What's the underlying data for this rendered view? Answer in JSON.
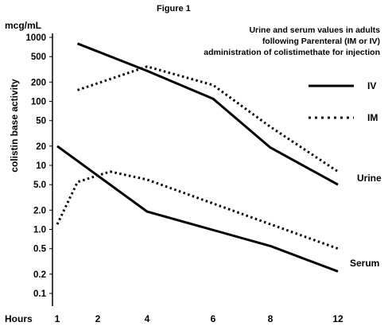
{
  "chart_data": {
    "type": "line",
    "title": "Figure 1",
    "subtitle_lines": [
      "Urine and serum values in adults",
      "following Parenteral (IM or IV)",
      "administration of colistimethate for injection"
    ],
    "unit_label": "mcg/mL",
    "ylabel": "colistin base activity",
    "xlabel": "Hours",
    "x_ticks": [
      "1",
      "2",
      "4",
      "6",
      "8",
      "12"
    ],
    "y_ticks": [
      "1000",
      "500",
      "200",
      "100",
      "50",
      "20",
      "10",
      "5.0",
      "2.0",
      "1.0",
      "0.5",
      "0.2",
      "0.1"
    ],
    "y_scale": "log",
    "ylim": [
      0.1,
      1000
    ],
    "legend": [
      {
        "name": "IV",
        "style": "solid"
      },
      {
        "name": "IM",
        "style": "dotted"
      }
    ],
    "legend_placement": "right",
    "series": [
      {
        "group": "Urine",
        "route": "IV",
        "style": "solid",
        "points": [
          {
            "x": "1.5",
            "y": 800
          },
          {
            "x": "4",
            "y": 300
          },
          {
            "x": "6",
            "y": 110
          },
          {
            "x": "8",
            "y": 19
          },
          {
            "x": "12",
            "y": 5
          }
        ]
      },
      {
        "group": "Urine",
        "route": "IM",
        "style": "dotted",
        "points": [
          {
            "x": "1.5",
            "y": 150
          },
          {
            "x": "4",
            "y": 350
          },
          {
            "x": "6",
            "y": 180
          },
          {
            "x": "8",
            "y": 40
          },
          {
            "x": "12",
            "y": 8
          }
        ]
      },
      {
        "group": "Serum",
        "route": "IV",
        "style": "solid",
        "points": [
          {
            "x": "1",
            "y": 20
          },
          {
            "x": "4",
            "y": 1.9
          },
          {
            "x": "8",
            "y": 0.55
          },
          {
            "x": "12",
            "y": 0.22
          }
        ]
      },
      {
        "group": "Serum",
        "route": "IM",
        "style": "dotted",
        "points": [
          {
            "x": "1",
            "y": 1.2
          },
          {
            "x": "1.5",
            "y": 5.5
          },
          {
            "x": "2.5",
            "y": 8
          },
          {
            "x": "4",
            "y": 6
          },
          {
            "x": "12",
            "y": 0.5
          }
        ]
      }
    ],
    "annotations": [
      "Urine",
      "Serum"
    ],
    "grid": false
  }
}
